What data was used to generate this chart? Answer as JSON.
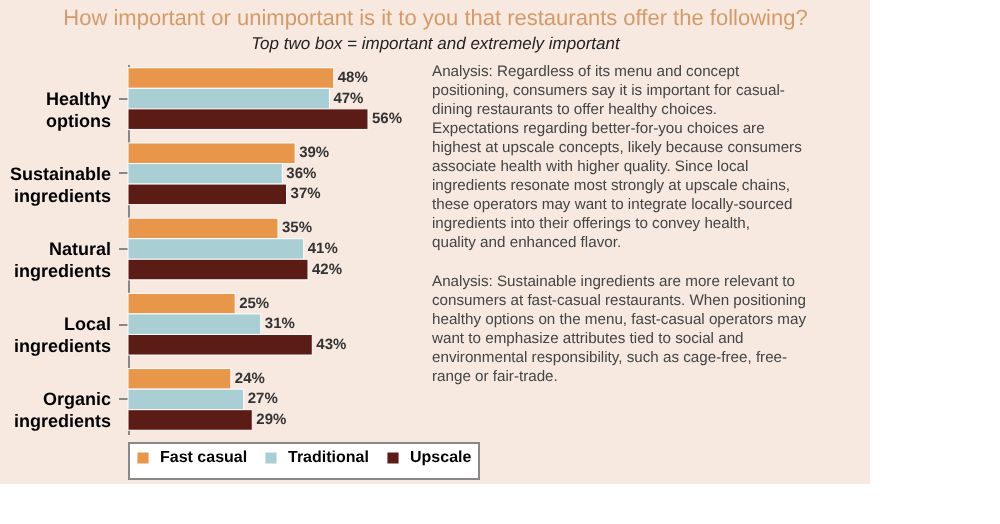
{
  "chart_data": {
    "type": "bar",
    "orientation": "horizontal",
    "title": "How important or unimportant is it to you that restaurants offer the following?",
    "subtitle": "Top two box = important and extremely important",
    "categories": [
      "Healthy options",
      "Sustainable ingredients",
      "Natural ingredients",
      "Local ingredients",
      "Organic ingredients"
    ],
    "series": [
      {
        "name": "Fast casual",
        "color": "#e8964a",
        "values": [
          48,
          39,
          35,
          25,
          24
        ],
        "value_labels": [
          "48%",
          "39%",
          "35%",
          "25%",
          "24%"
        ]
      },
      {
        "name": "Traditional",
        "color": "#a9cfd4",
        "values": [
          47,
          36,
          41,
          31,
          27
        ],
        "value_labels": [
          "47%",
          "36%",
          "41%",
          "31%",
          "27%"
        ]
      },
      {
        "name": "Upscale",
        "color": "#5b1c16",
        "values": [
          56,
          37,
          42,
          43,
          29
        ],
        "value_labels": [
          "56%",
          "37%",
          "42%",
          "43%",
          "29%"
        ]
      }
    ],
    "legend": "bottom",
    "grid": false,
    "annotations": [
      "Analysis: Regardless of its menu and concept positioning, consumers say it is important for casual-dining restaurants to offer healthy choices. Expectations regarding better-for-you choices are highest at upscale concepts, likely because consumers associate health with higher quality. Since local ingredients resonate most strongly at upscale chains, these operators may want to integrate locally-sourced ingredients into their offerings to convey health, quality and enhanced flavor.",
      "Analysis: Sustainable ingredients are more relevant to consumers at fast-casual restaurants. When positioning healthy options on the menu, fast-casual operators may want to emphasize attributes tied to social and environmental responsibility, such as cage-free, free-range or fair-trade."
    ]
  }
}
